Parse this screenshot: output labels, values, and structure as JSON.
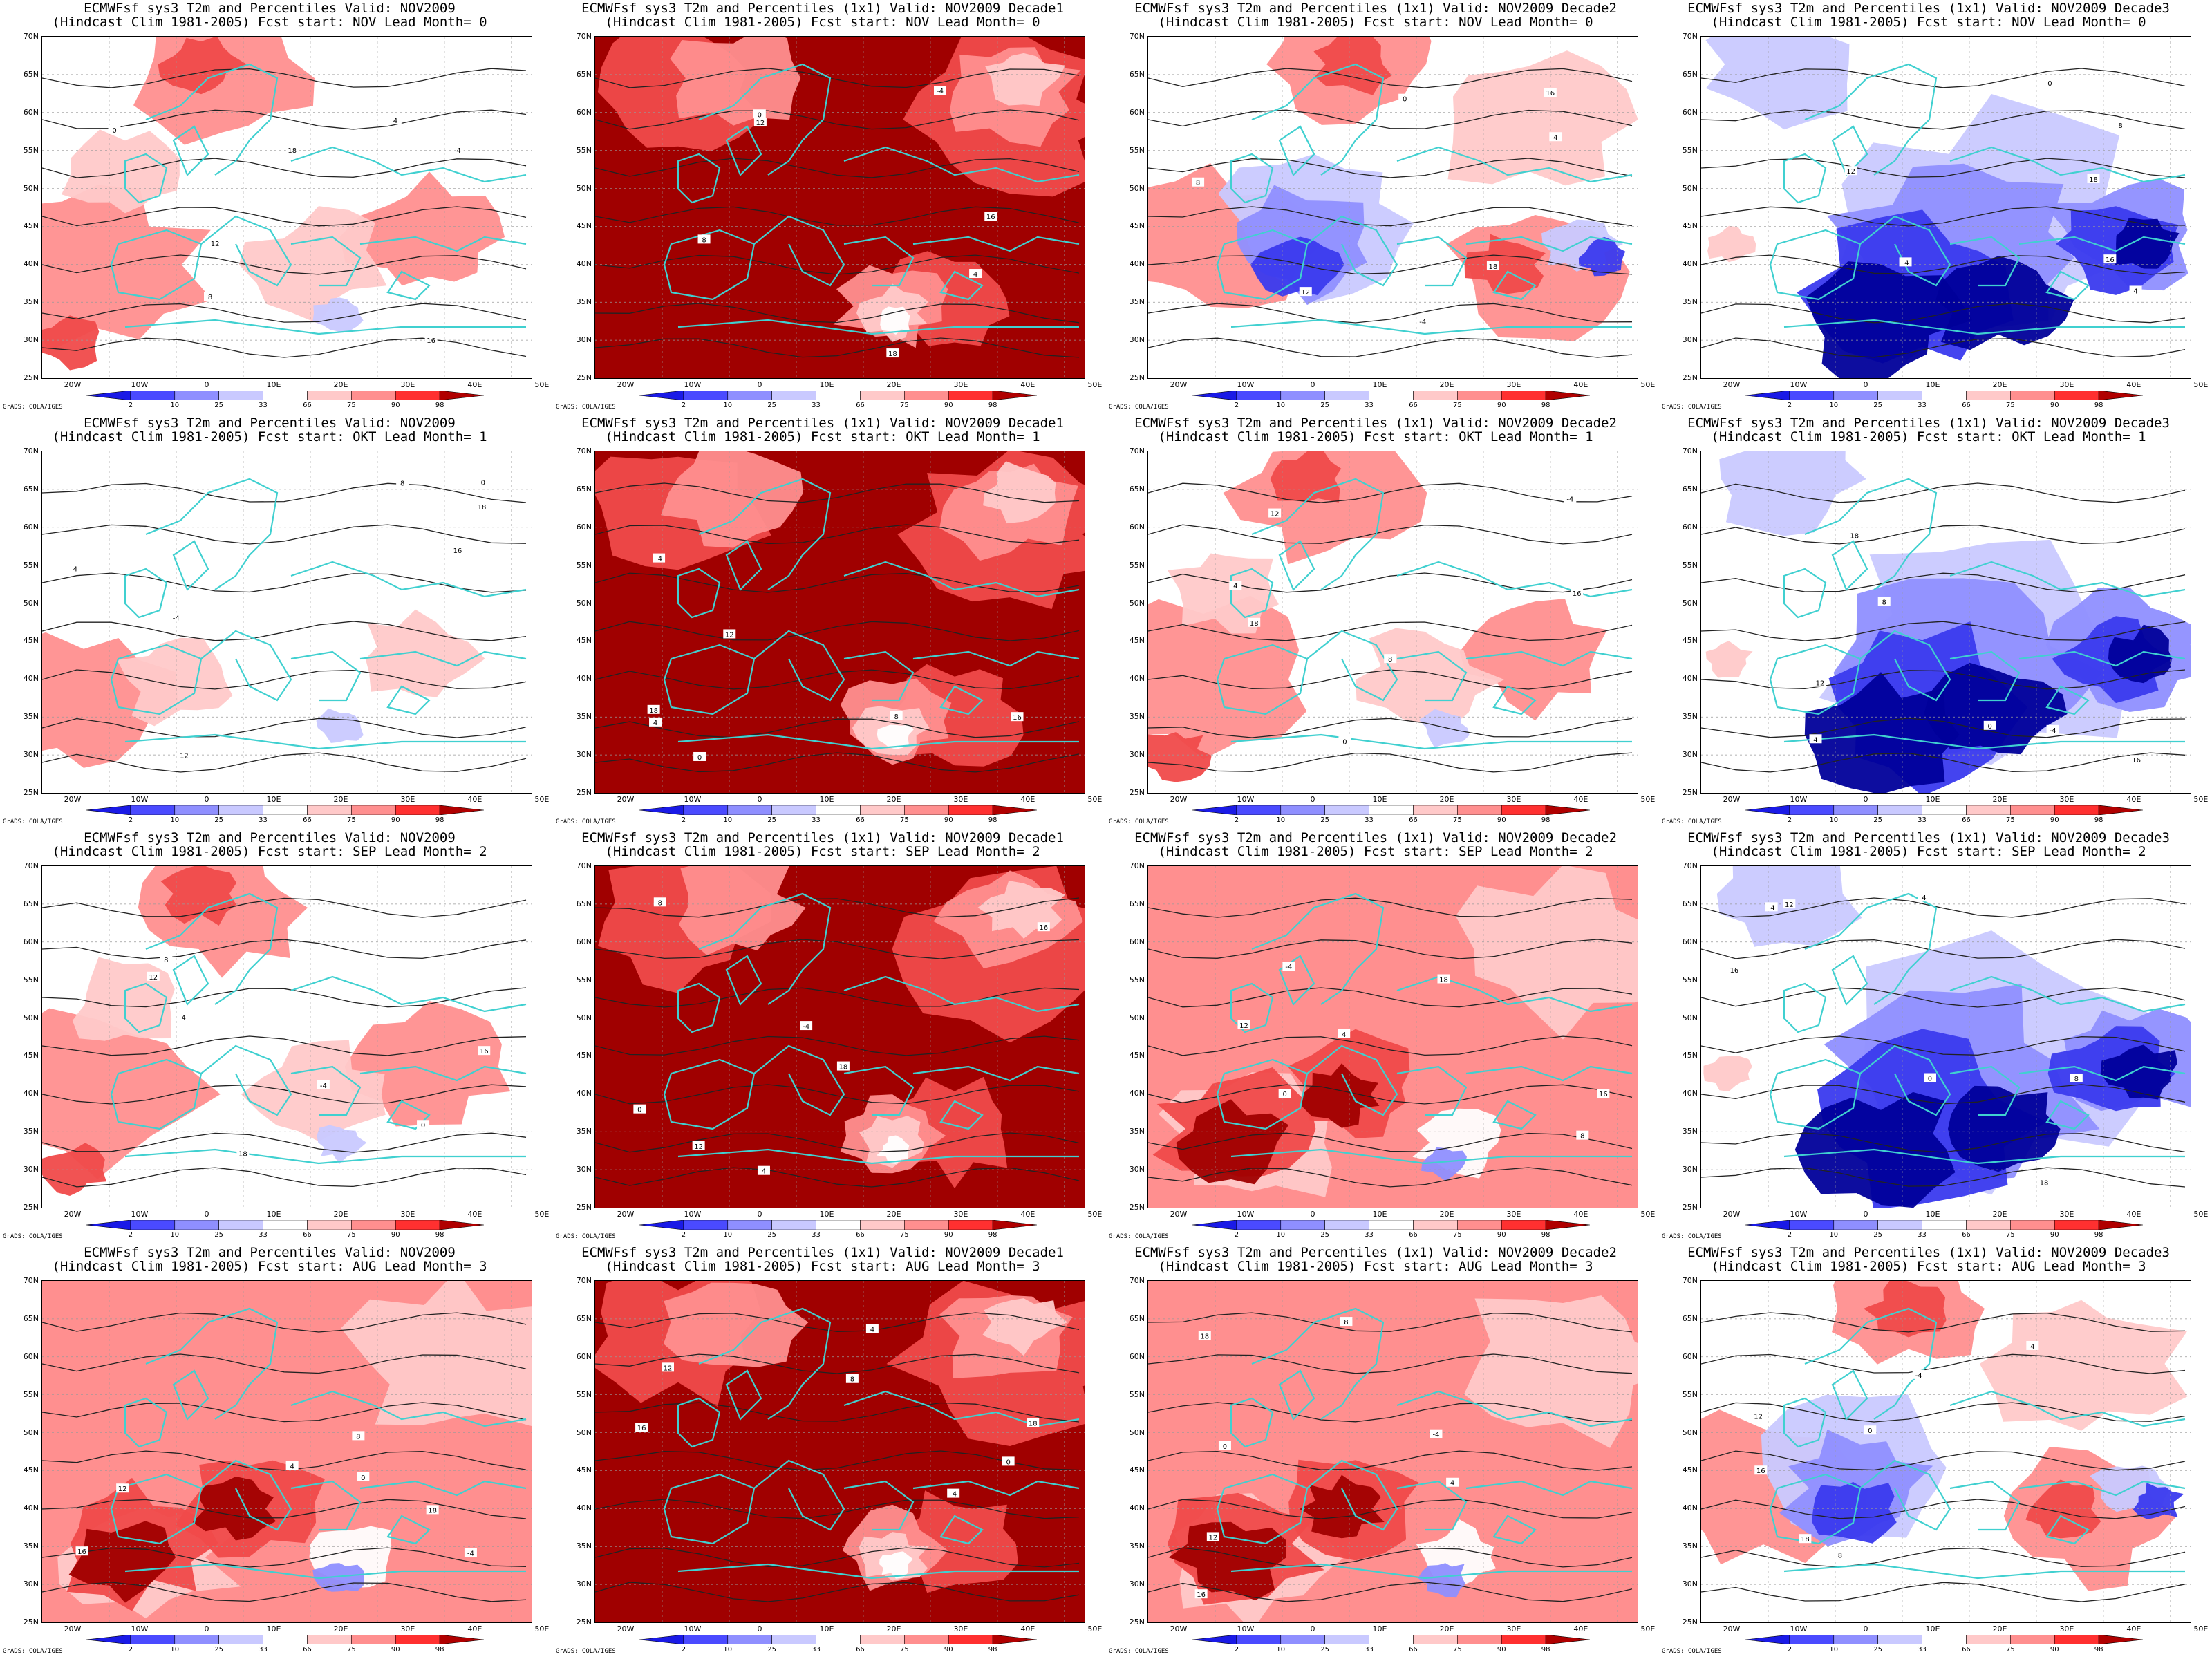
{
  "figure": {
    "panels": [
      {
        "line1": "ECMWFsf sys3  T2m and Percentiles Valid: NOV2009",
        "line2": "(Hindcast Clim 1981-2005) Fcst start: NOV  Lead Month= 0",
        "mode": "warm-west"
      },
      {
        "line1": "ECMWFsf sys3  T2m and Percentiles (1x1) Valid: NOV2009 Decade1",
        "line2": "(Hindcast Clim 1981-2005) Fcst start: NOV  Lead Month= 0",
        "mode": "hot"
      },
      {
        "line1": "ECMWFsf sys3  T2m and Percentiles (1x1) Valid: NOV2009 Decade2",
        "line2": "(Hindcast Clim 1981-2005) Fcst start: NOV  Lead Month= 0",
        "mode": "mixed"
      },
      {
        "line1": "ECMWFsf sys3  T2m and Percentiles (1x1) Valid: NOV2009 Decade3",
        "line2": "(Hindcast Clim 1981-2005) Fcst start: NOV  Lead Month= 0",
        "mode": "cold"
      },
      {
        "line1": "ECMWFsf sys3  T2m and Percentiles Valid: NOV2009",
        "line2": "(Hindcast Clim 1981-2005) Fcst start: OKT  Lead Month= 1",
        "mode": "neutral"
      },
      {
        "line1": "ECMWFsf sys3  T2m and Percentiles (1x1) Valid: NOV2009 Decade1",
        "line2": "(Hindcast Clim 1981-2005) Fcst start: OKT  Lead Month= 1",
        "mode": "hot"
      },
      {
        "line1": "ECMWFsf sys3  T2m and Percentiles (1x1) Valid: NOV2009 Decade2",
        "line2": "(Hindcast Clim 1981-2005) Fcst start: OKT  Lead Month= 1",
        "mode": "warm-west"
      },
      {
        "line1": "ECMWFsf sys3  T2m and Percentiles (1x1) Valid: NOV2009 Decade3",
        "line2": "(Hindcast Clim 1981-2005) Fcst start: OKT  Lead Month= 1",
        "mode": "cold"
      },
      {
        "line1": "ECMWFsf sys3  T2m and Percentiles Valid: NOV2009",
        "line2": "(Hindcast Clim 1981-2005) Fcst start: SEP  Lead Month= 2",
        "mode": "warm-west"
      },
      {
        "line1": "ECMWFsf sys3  T2m and Percentiles (1x1) Valid: NOV2009 Decade1",
        "line2": "(Hindcast Clim 1981-2005) Fcst start: SEP  Lead Month= 2",
        "mode": "hot"
      },
      {
        "line1": "ECMWFsf sys3  T2m and Percentiles (1x1) Valid: NOV2009 Decade2",
        "line2": "(Hindcast Clim 1981-2005) Fcst start: SEP  Lead Month= 2",
        "mode": "warm"
      },
      {
        "line1": "ECMWFsf sys3  T2m and Percentiles (1x1) Valid: NOV2009 Decade3",
        "line2": "(Hindcast Clim 1981-2005) Fcst start: SEP  Lead Month= 2",
        "mode": "cold"
      },
      {
        "line1": "ECMWFsf sys3  T2m and Percentiles Valid: NOV2009",
        "line2": "(Hindcast Clim 1981-2005) Fcst start: AUG  Lead Month= 3",
        "mode": "warm"
      },
      {
        "line1": "ECMWFsf sys3  T2m and Percentiles (1x1) Valid: NOV2009 Decade1",
        "line2": "(Hindcast Clim 1981-2005) Fcst start: AUG  Lead Month= 3",
        "mode": "hot"
      },
      {
        "line1": "ECMWFsf sys3  T2m and Percentiles (1x1) Valid: NOV2009 Decade2",
        "line2": "(Hindcast Clim 1981-2005) Fcst start: AUG  Lead Month= 3",
        "mode": "warm"
      },
      {
        "line1": "ECMWFsf sys3  T2m and Percentiles (1x1) Valid: NOV2009 Decade3",
        "line2": "(Hindcast Clim 1981-2005) Fcst start: AUG  Lead Month= 3",
        "mode": "mixed"
      }
    ],
    "latitude_labels": [
      "70N",
      "65N",
      "60N",
      "55N",
      "50N",
      "45N",
      "40N",
      "35N",
      "30N",
      "25N"
    ],
    "longitude_labels": [
      "20W",
      "10W",
      "0",
      "10E",
      "20E",
      "30E",
      "40E",
      "50E"
    ],
    "colorbar_labels": [
      "2",
      "10",
      "25",
      "33",
      "66",
      "75",
      "90",
      "98"
    ],
    "colorbar_colors": [
      "#1a1ae6",
      "#4a4aff",
      "#8f8fff",
      "#c9c9ff",
      "#ffffff",
      "#ffc9c9",
      "#ff8f8f",
      "#ff3030",
      "#b00000"
    ],
    "credit": "GrADS: COLA/IGES",
    "colors": {
      "coast": "#40d0d0",
      "contour": "#222222",
      "cold_deep": "#00008b",
      "hot_deep": "#9c0000"
    },
    "contour_labels": [
      "-4",
      "0",
      "4",
      "8",
      "12",
      "16",
      "18"
    ]
  }
}
